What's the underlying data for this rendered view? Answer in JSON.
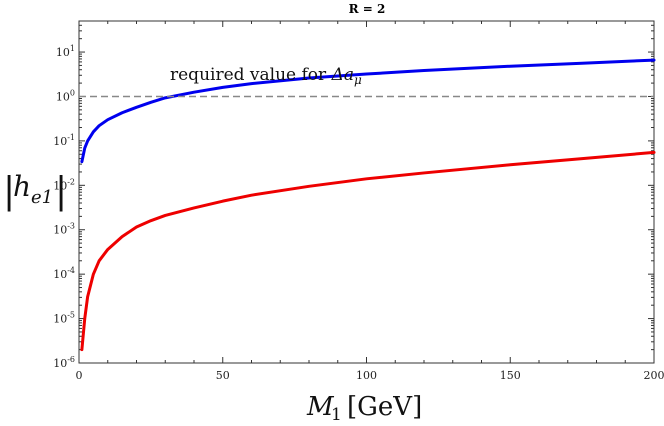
{
  "chart_data": {
    "type": "line",
    "title": "R = 2",
    "xlabel": "M₁ [GeV]",
    "ylabel": "|h_e1|",
    "xlim": [
      0,
      200
    ],
    "ylim": [
      1e-06,
      50
    ],
    "y_scale": "log",
    "x_ticks": [
      0,
      50,
      100,
      150,
      200
    ],
    "y_ticks": [
      {
        "value": 1e-06,
        "base": "10",
        "exp": "-6"
      },
      {
        "value": 1e-05,
        "base": "10",
        "exp": "-5"
      },
      {
        "value": 0.0001,
        "base": "10",
        "exp": "-4"
      },
      {
        "value": 0.001,
        "base": "10",
        "exp": "-3"
      },
      {
        "value": 0.01,
        "base": "10",
        "exp": "-2"
      },
      {
        "value": 0.1,
        "base": "10",
        "exp": "-1"
      },
      {
        "value": 1,
        "base": "10",
        "exp": "0"
      },
      {
        "value": 10,
        "base": "10",
        "exp": "1"
      }
    ],
    "series": [
      {
        "color": "#0000ee",
        "x": [
          1,
          2,
          3,
          5,
          7,
          10,
          15,
          20,
          25,
          30,
          40,
          50,
          60,
          80,
          100,
          120,
          150,
          175,
          200
        ],
        "y": [
          0.034,
          0.069,
          0.1,
          0.16,
          0.22,
          0.3,
          0.43,
          0.57,
          0.74,
          0.93,
          1.25,
          1.6,
          1.95,
          2.6,
          3.2,
          3.85,
          4.8,
          5.6,
          6.6
        ]
      },
      {
        "color": "#ee0000",
        "x": [
          1,
          2,
          3,
          5,
          7,
          10,
          15,
          20,
          25,
          30,
          40,
          50,
          60,
          80,
          100,
          120,
          150,
          175,
          200
        ],
        "y": [
          2e-06,
          1e-05,
          3.1e-05,
          0.0001,
          0.0002,
          0.00036,
          0.0007,
          0.00115,
          0.0016,
          0.0021,
          0.0031,
          0.0044,
          0.006,
          0.0095,
          0.014,
          0.019,
          0.029,
          0.04,
          0.055
        ]
      }
    ],
    "reference_line": {
      "y": 1,
      "color": "#888888",
      "style": "dashed",
      "label_text": "required value for ",
      "label_math": "Δa",
      "label_sub": "μ"
    },
    "grid": false,
    "legend": "none"
  }
}
